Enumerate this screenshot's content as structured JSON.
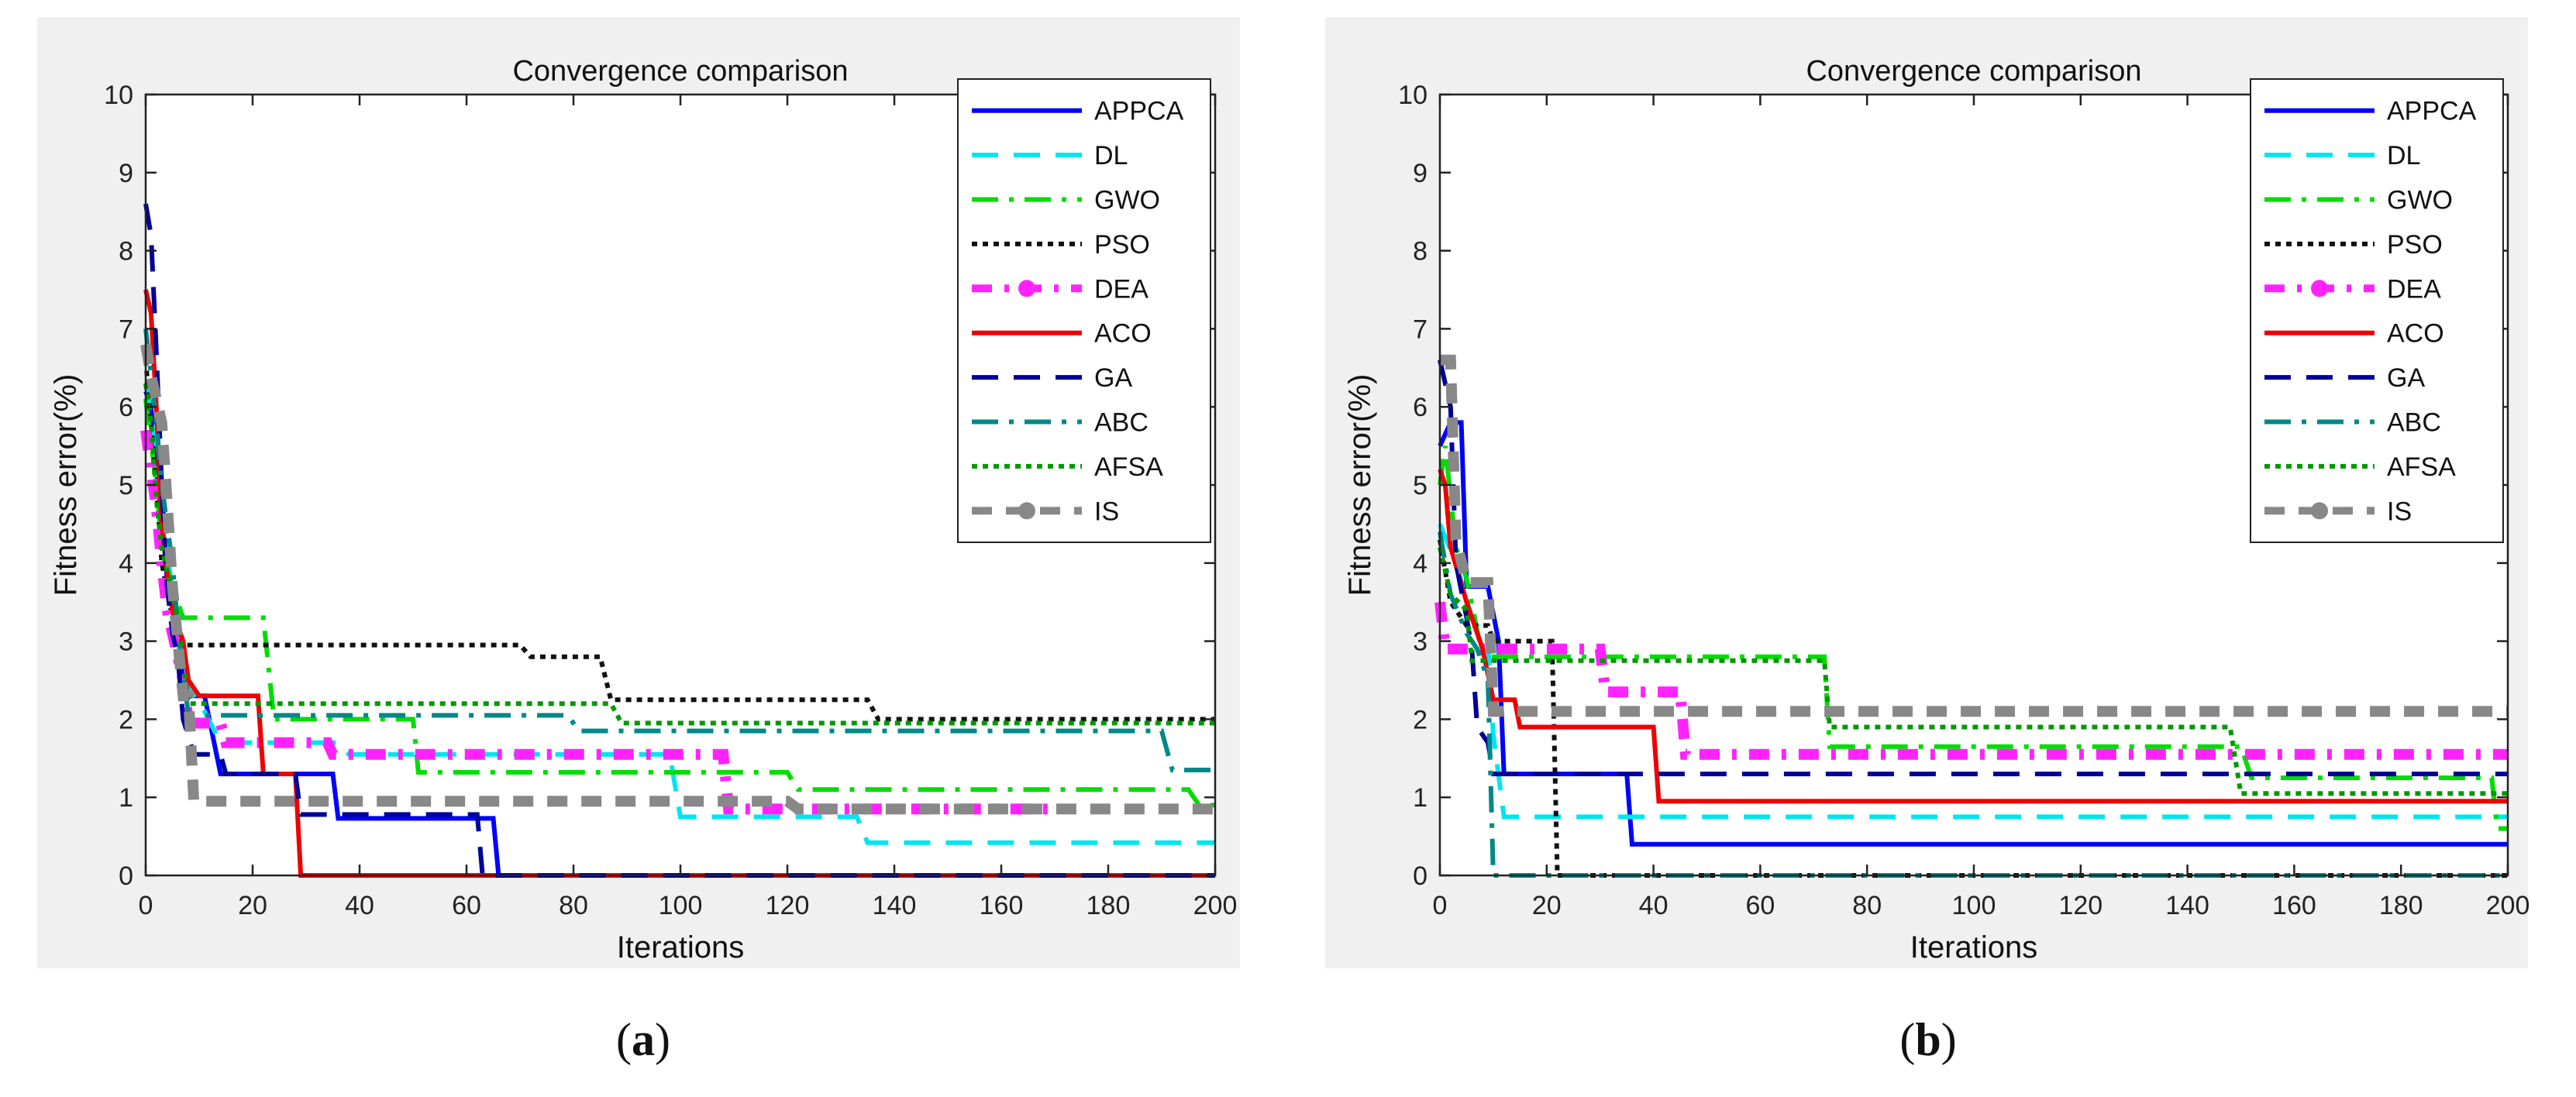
{
  "chart_data": [
    {
      "type": "line",
      "panel_label": "a",
      "title": "Convergence comparison",
      "xlabel": "Iterations",
      "ylabel": "Fitness error(%)",
      "xlim": [
        0,
        200
      ],
      "ylim": [
        0,
        10
      ],
      "xticks": [
        0,
        20,
        40,
        60,
        80,
        100,
        120,
        140,
        160,
        180,
        200
      ],
      "yticks": [
        0,
        1,
        2,
        3,
        4,
        5,
        6,
        7,
        8,
        9,
        10
      ],
      "legend_position": "top-right",
      "series": [
        {
          "name": "APPCA",
          "color": "#0000ff",
          "style": "solid",
          "points": [
            [
              0,
              6.2
            ],
            [
              1,
              6.0
            ],
            [
              2,
              5.2
            ],
            [
              3,
              4.6
            ],
            [
              4,
              3.8
            ],
            [
              5,
              3.4
            ],
            [
              6,
              3.1
            ],
            [
              7,
              2.5
            ],
            [
              8,
              2.3
            ],
            [
              11,
              2.3
            ],
            [
              14,
              1.3
            ],
            [
              35,
              1.3
            ],
            [
              36,
              0.73
            ],
            [
              65,
              0.73
            ],
            [
              66,
              0
            ],
            [
              200,
              0
            ]
          ]
        },
        {
          "name": "DL",
          "color": "#00e5ee",
          "style": "dash",
          "points": [
            [
              0,
              6.3
            ],
            [
              2,
              5.5
            ],
            [
              4,
              4.2
            ],
            [
              5,
              3.6
            ],
            [
              6,
              3.0
            ],
            [
              8,
              2.4
            ],
            [
              11,
              2.1
            ],
            [
              14,
              1.7
            ],
            [
              36,
              1.7
            ],
            [
              38,
              1.55
            ],
            [
              98,
              1.55
            ],
            [
              100,
              0.75
            ],
            [
              133,
              0.75
            ],
            [
              135,
              0.42
            ],
            [
              200,
              0.42
            ]
          ]
        },
        {
          "name": "GWO",
          "color": "#00dd00",
          "style": "dashdot",
          "points": [
            [
              0,
              6.1
            ],
            [
              2,
              5.0
            ],
            [
              3,
              4.2
            ],
            [
              5,
              3.7
            ],
            [
              7,
              3.3
            ],
            [
              22,
              3.3
            ],
            [
              24,
              2.0
            ],
            [
              50,
              2.0
            ],
            [
              51,
              1.32
            ],
            [
              120,
              1.32
            ],
            [
              122,
              1.1
            ],
            [
              195,
              1.1
            ],
            [
              197,
              0.9
            ],
            [
              200,
              0.9
            ]
          ]
        },
        {
          "name": "PSO",
          "color": "#111111",
          "style": "dot",
          "points": [
            [
              0,
              6.6
            ],
            [
              2,
              5.0
            ],
            [
              3,
              4.0
            ],
            [
              5,
              3.3
            ],
            [
              7,
              2.95
            ],
            [
              70,
              2.95
            ],
            [
              72,
              2.8
            ],
            [
              85,
              2.8
            ],
            [
              87,
              2.25
            ],
            [
              135,
              2.25
            ],
            [
              137,
              2.0
            ],
            [
              200,
              2.0
            ]
          ]
        },
        {
          "name": "DEA",
          "color": "#ff22ff",
          "style": "dashdot-marker",
          "points": [
            [
              0,
              5.7
            ],
            [
              2,
              4.7
            ],
            [
              3,
              4.0
            ],
            [
              4,
              3.4
            ],
            [
              5,
              3.1
            ],
            [
              7,
              2.5
            ],
            [
              8,
              1.95
            ],
            [
              14,
              1.95
            ],
            [
              15,
              1.7
            ],
            [
              34,
              1.7
            ],
            [
              35,
              1.55
            ],
            [
              108,
              1.55
            ],
            [
              109,
              0.85
            ],
            [
              170,
              0.85
            ]
          ]
        },
        {
          "name": "ACO",
          "color": "#ee0000",
          "style": "solid",
          "points": [
            [
              0,
              7.5
            ],
            [
              1,
              7.2
            ],
            [
              2,
              6.0
            ],
            [
              3,
              4.5
            ],
            [
              4,
              3.9
            ],
            [
              5,
              3.4
            ],
            [
              7,
              3.0
            ],
            [
              8,
              2.5
            ],
            [
              10,
              2.3
            ],
            [
              21,
              2.3
            ],
            [
              22,
              1.3
            ],
            [
              28,
              1.3
            ],
            [
              29,
              0
            ],
            [
              200,
              0
            ]
          ]
        },
        {
          "name": "GA",
          "color": "#000099",
          "style": "dash",
          "points": [
            [
              0,
              8.6
            ],
            [
              1,
              8.2
            ],
            [
              2,
              6.7
            ],
            [
              3,
              5.0
            ],
            [
              4,
              3.7
            ],
            [
              5,
              3.1
            ],
            [
              6,
              2.8
            ],
            [
              7,
              2.0
            ],
            [
              9,
              1.55
            ],
            [
              14,
              1.55
            ],
            [
              15,
              1.3
            ],
            [
              28,
              1.3
            ],
            [
              29,
              0.78
            ],
            [
              62,
              0.78
            ],
            [
              63,
              0
            ],
            [
              200,
              0
            ]
          ]
        },
        {
          "name": "ABC",
          "color": "#008888",
          "style": "dashdot",
          "points": [
            [
              0,
              7.0
            ],
            [
              2,
              5.8
            ],
            [
              3,
              5.0
            ],
            [
              5,
              4.0
            ],
            [
              6,
              3.2
            ],
            [
              7,
              2.6
            ],
            [
              8,
              2.05
            ],
            [
              79,
              2.05
            ],
            [
              81,
              1.85
            ],
            [
              190,
              1.85
            ],
            [
              192,
              1.35
            ],
            [
              200,
              1.35
            ]
          ]
        },
        {
          "name": "AFSA",
          "color": "#009900",
          "style": "dot",
          "points": [
            [
              0,
              6.3
            ],
            [
              1,
              5.8
            ],
            [
              2,
              4.8
            ],
            [
              3,
              4.2
            ],
            [
              4,
              3.9
            ],
            [
              6,
              3.3
            ],
            [
              8,
              2.2
            ],
            [
              87,
              2.2
            ],
            [
              89,
              1.95
            ],
            [
              200,
              1.95
            ]
          ]
        },
        {
          "name": "IS",
          "color": "#888888",
          "style": "dash-marker",
          "points": [
            [
              0,
              6.8
            ],
            [
              1,
              6.4
            ],
            [
              3,
              5.8
            ],
            [
              4,
              4.8
            ],
            [
              5,
              3.7
            ],
            [
              7,
              2.3
            ],
            [
              8,
              2.3
            ],
            [
              9,
              0.95
            ],
            [
              120,
              0.95
            ],
            [
              122,
              0.85
            ],
            [
              200,
              0.85
            ]
          ]
        }
      ]
    },
    {
      "type": "line",
      "panel_label": "b",
      "title": "Convergence comparison",
      "xlabel": "Iterations",
      "ylabel": "Fitness error(%)",
      "xlim": [
        0,
        200
      ],
      "ylim": [
        0,
        10
      ],
      "xticks": [
        0,
        20,
        40,
        60,
        80,
        100,
        120,
        140,
        160,
        180,
        200
      ],
      "yticks": [
        0,
        1,
        2,
        3,
        4,
        5,
        6,
        7,
        8,
        9,
        10
      ],
      "legend_position": "top-right",
      "series": [
        {
          "name": "APPCA",
          "color": "#0000ff",
          "style": "solid",
          "points": [
            [
              0,
              5.5
            ],
            [
              2,
              5.8
            ],
            [
              4,
              5.8
            ],
            [
              5,
              3.7
            ],
            [
              9,
              3.7
            ],
            [
              11,
              3.0
            ],
            [
              12,
              1.3
            ],
            [
              35,
              1.3
            ],
            [
              36,
              0.4
            ],
            [
              200,
              0.4
            ]
          ]
        },
        {
          "name": "DL",
          "color": "#00e5ee",
          "style": "dash",
          "points": [
            [
              0,
              4.5
            ],
            [
              3,
              4.0
            ],
            [
              6,
              3.3
            ],
            [
              9,
              3.0
            ],
            [
              10,
              1.8
            ],
            [
              12,
              0.75
            ],
            [
              200,
              0.75
            ]
          ]
        },
        {
          "name": "GWO",
          "color": "#00dd00",
          "style": "dashdot",
          "points": [
            [
              0,
              5.0
            ],
            [
              1,
              5.5
            ],
            [
              3,
              4.2
            ],
            [
              5,
              3.8
            ],
            [
              8,
              2.8
            ],
            [
              72,
              2.8
            ],
            [
              73,
              1.65
            ],
            [
              85,
              1.65
            ],
            [
              150,
              1.65
            ],
            [
              152,
              1.25
            ],
            [
              197,
              1.25
            ],
            [
              198,
              0.6
            ],
            [
              200,
              0.6
            ]
          ]
        },
        {
          "name": "PSO",
          "color": "#111111",
          "style": "dot",
          "points": [
            [
              0,
              4.3
            ],
            [
              2,
              3.5
            ],
            [
              5,
              3.2
            ],
            [
              9,
              3.2
            ],
            [
              10,
              3.0
            ],
            [
              21,
              3.0
            ],
            [
              22,
              0
            ],
            [
              200,
              0
            ]
          ]
        },
        {
          "name": "DEA",
          "color": "#ff22ff",
          "style": "dashdot-marker",
          "points": [
            [
              0,
              3.5
            ],
            [
              1,
              2.9
            ],
            [
              30,
              2.9
            ],
            [
              31,
              2.35
            ],
            [
              45,
              2.35
            ],
            [
              46,
              1.55
            ],
            [
              200,
              1.55
            ]
          ]
        },
        {
          "name": "ACO",
          "color": "#ee0000",
          "style": "solid",
          "points": [
            [
              0,
              5.2
            ],
            [
              1,
              5.0
            ],
            [
              2,
              4.2
            ],
            [
              5,
              3.5
            ],
            [
              8,
              2.9
            ],
            [
              10,
              2.25
            ],
            [
              14,
              2.25
            ],
            [
              15,
              1.9
            ],
            [
              40,
              1.9
            ],
            [
              41,
              0.95
            ],
            [
              200,
              0.95
            ]
          ]
        },
        {
          "name": "GA",
          "color": "#000099",
          "style": "dash",
          "points": [
            [
              0,
              6.6
            ],
            [
              2,
              6.0
            ],
            [
              3,
              4.0
            ],
            [
              5,
              3.3
            ],
            [
              6,
              2.9
            ],
            [
              7,
              1.9
            ],
            [
              9,
              1.7
            ],
            [
              10,
              1.3
            ],
            [
              200,
              1.3
            ]
          ]
        },
        {
          "name": "ABC",
          "color": "#008888",
          "style": "dashdot",
          "points": [
            [
              0,
              4.4
            ],
            [
              2,
              3.6
            ],
            [
              5,
              3.1
            ],
            [
              7,
              2.9
            ],
            [
              9,
              2.5
            ],
            [
              10,
              0
            ],
            [
              200,
              0
            ]
          ]
        },
        {
          "name": "AFSA",
          "color": "#009900",
          "style": "dot",
          "points": [
            [
              0,
              4.2
            ],
            [
              2,
              3.6
            ],
            [
              5,
              3.4
            ],
            [
              6,
              2.75
            ],
            [
              72,
              2.75
            ],
            [
              73,
              1.9
            ],
            [
              148,
              1.9
            ],
            [
              150,
              1.05
            ],
            [
              200,
              1.05
            ]
          ]
        },
        {
          "name": "IS",
          "color": "#888888",
          "style": "dash-marker",
          "points": [
            [
              0,
              6.6
            ],
            [
              2,
              6.6
            ],
            [
              3,
              4.3
            ],
            [
              5,
              3.75
            ],
            [
              9,
              3.75
            ],
            [
              10,
              2.1
            ],
            [
              200,
              2.1
            ]
          ]
        }
      ]
    }
  ]
}
